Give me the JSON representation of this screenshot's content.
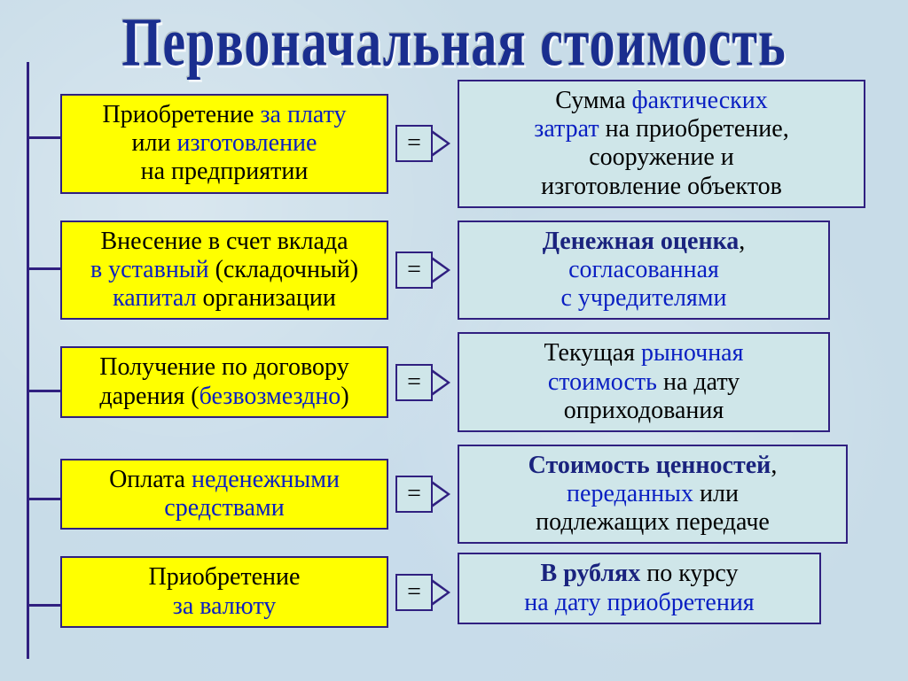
{
  "title": "Первоначальная стоимость",
  "equals": "=",
  "colors": {
    "yellow": "#ffff00",
    "lightblue": "#cfe6e9",
    "border": "#302080",
    "title": "#1a2e8f",
    "accent_blue": "#0a1fc2",
    "background": "#c8dce8"
  },
  "rows": [
    {
      "left": {
        "l1a": "Приобретение ",
        "l1b": "за плату",
        "l2a": "или ",
        "l2b": "изготовление",
        "l3": "на предприятии"
      },
      "right": {
        "r1a": "Сумма ",
        "r1b": "фактических",
        "r2a": "затрат ",
        "r2b": "на приобретение,",
        "r3": "сооружение и",
        "r4": "изготовление объектов"
      }
    },
    {
      "left": {
        "l1": "Внесение в счет вклада",
        "l2a": "в уставный ",
        "l2b": "(складочный)",
        "l3a": "капитал ",
        "l3b": "организации"
      },
      "right": {
        "r1a": "Денежная оценка",
        "r1b": ",",
        "r2": "согласованная",
        "r3": "с учредителями"
      }
    },
    {
      "left": {
        "l1": "Получение по договору",
        "l2a": "дарения  (",
        "l2b": "безвозмездно",
        "l2c": ")"
      },
      "right": {
        "r1a": "Текущая ",
        "r1b": "рыночная",
        "r2a": "стоимость ",
        "r2b": "на дату",
        "r3": "оприходования"
      }
    },
    {
      "left": {
        "l1a": "Оплата ",
        "l1b": "неденежными",
        "l2": "средствами"
      },
      "right": {
        "r1a": "Стоимость ценностей",
        "r1b": ",",
        "r2a": "переданных ",
        "r2b": "или",
        "r3": "подлежащих передаче"
      }
    },
    {
      "left": {
        "l1": "Приобретение",
        "l2": "за валюту"
      },
      "right": {
        "r1a": "В рублях ",
        "r1b": "по курсу",
        "r2": "на дату приобретения"
      }
    }
  ]
}
